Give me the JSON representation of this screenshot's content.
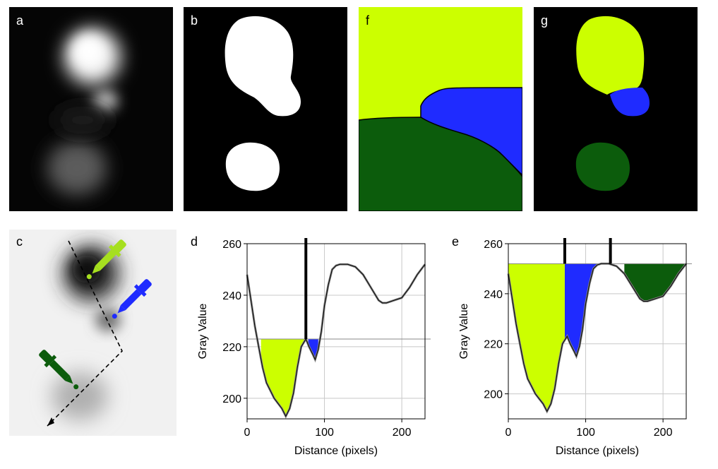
{
  "panels": {
    "a": {
      "label": "a"
    },
    "b": {
      "label": "b"
    },
    "f": {
      "label": "f"
    },
    "g": {
      "label": "g"
    },
    "c": {
      "label": "c"
    },
    "d": {
      "label": "d"
    },
    "e": {
      "label": "e"
    }
  },
  "colors": {
    "seed_yellow": "#ccff00",
    "seed_blue": "#1f2bff",
    "seed_green": "#0c5c0c",
    "dropper_yellow": "#a6df1f",
    "background_black": "#000000"
  },
  "icons": [
    "pipette-yellow-icon",
    "pipette-blue-icon",
    "pipette-green-icon",
    "dashed-path-arrow-icon"
  ],
  "chart_data": [
    {
      "panel": "d",
      "type": "line",
      "xlabel": "Distance (pixels)",
      "ylabel": "Gray Value",
      "xlim": [
        0,
        230
      ],
      "ylim": [
        192,
        260
      ],
      "x_ticks": [
        0,
        100,
        200
      ],
      "y_ticks": [
        200,
        220,
        240,
        260
      ],
      "grid": true,
      "threshold": 223,
      "markers_x": [
        76
      ],
      "x": [
        0,
        5,
        10,
        15,
        20,
        25,
        30,
        35,
        40,
        45,
        50,
        55,
        60,
        65,
        70,
        76,
        80,
        85,
        88,
        92,
        96,
        100,
        105,
        110,
        115,
        120,
        130,
        140,
        150,
        160,
        170,
        175,
        180,
        190,
        200,
        210,
        220,
        230
      ],
      "y": [
        248,
        238,
        228,
        220,
        212,
        206,
        203,
        200,
        198,
        196,
        193,
        196,
        202,
        212,
        220,
        223,
        220,
        217,
        215,
        219,
        226,
        236,
        244,
        250,
        251.5,
        252,
        252,
        251,
        248,
        243,
        238,
        237,
        237,
        238,
        239,
        243,
        248,
        252
      ],
      "series": [
        {
          "name": "yellow",
          "fill_x_range": [
            18,
            75
          ]
        },
        {
          "name": "blue",
          "fill_x_range": [
            79,
            92
          ]
        }
      ]
    },
    {
      "panel": "e",
      "type": "line",
      "xlabel": "Distance (pixels)",
      "ylabel": "Gray Value",
      "xlim": [
        0,
        230
      ],
      "ylim": [
        190,
        260
      ],
      "x_ticks": [
        0,
        100,
        200
      ],
      "y_ticks": [
        200,
        220,
        240,
        260
      ],
      "grid": true,
      "threshold": 252,
      "markers_x": [
        73,
        132
      ],
      "x": [
        0,
        5,
        10,
        15,
        20,
        25,
        30,
        35,
        40,
        45,
        50,
        55,
        60,
        65,
        70,
        76,
        80,
        85,
        88,
        92,
        96,
        100,
        105,
        110,
        115,
        120,
        130,
        140,
        150,
        160,
        170,
        175,
        180,
        190,
        200,
        210,
        220,
        230
      ],
      "y": [
        248,
        238,
        228,
        220,
        212,
        206,
        203,
        200,
        198,
        196,
        193,
        196,
        202,
        212,
        220,
        223,
        220,
        217,
        215,
        219,
        226,
        236,
        244,
        250,
        251.5,
        252,
        252,
        251,
        248,
        243,
        238,
        237,
        237,
        238,
        239,
        243,
        248,
        252
      ],
      "series": [
        {
          "name": "yellow",
          "fill_x_range": [
            0,
            73
          ]
        },
        {
          "name": "blue",
          "fill_x_range": [
            73,
            117
          ]
        },
        {
          "name": "green",
          "fill_x_range": [
            150,
            230
          ]
        }
      ]
    }
  ]
}
